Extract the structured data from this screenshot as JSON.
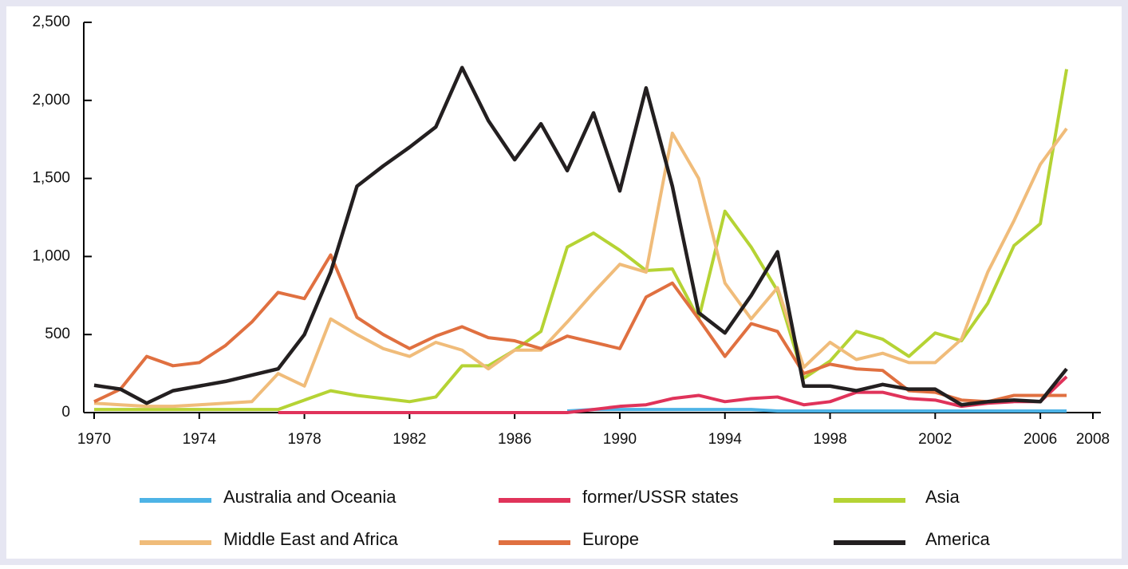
{
  "chart_data": {
    "type": "line",
    "x": [
      1970,
      1971,
      1972,
      1973,
      1974,
      1975,
      1976,
      1977,
      1978,
      1979,
      1980,
      1981,
      1982,
      1983,
      1984,
      1985,
      1986,
      1987,
      1988,
      1989,
      1990,
      1991,
      1992,
      1993,
      1994,
      1995,
      1996,
      1997,
      1998,
      1999,
      2000,
      2001,
      2002,
      2003,
      2004,
      2005,
      2006,
      2007
    ],
    "xlim": [
      1970,
      2008
    ],
    "xticks": [
      1970,
      1974,
      1978,
      1982,
      1986,
      1990,
      1994,
      1998,
      2002,
      2006,
      2008
    ],
    "ylim": [
      0,
      2500
    ],
    "yticks": [
      0,
      500,
      {
        "value": 1000,
        "label": "1,000"
      },
      {
        "value": 1500,
        "label": "1,500"
      },
      {
        "value": 2000,
        "label": "2,000"
      },
      {
        "value": 2500,
        "label": "2,500"
      }
    ],
    "series": [
      {
        "name": "Australia and Oceania",
        "color": "#4db3e6",
        "values": [
          null,
          null,
          null,
          null,
          null,
          null,
          null,
          null,
          null,
          null,
          null,
          null,
          null,
          null,
          null,
          null,
          null,
          null,
          10,
          20,
          20,
          20,
          20,
          20,
          20,
          20,
          10,
          10,
          10,
          10,
          10,
          10,
          10,
          10,
          10,
          10,
          10,
          10
        ]
      },
      {
        "name": "former/USSR states",
        "color": "#e0335a",
        "values": [
          null,
          null,
          null,
          null,
          null,
          null,
          null,
          0,
          0,
          0,
          0,
          0,
          0,
          0,
          0,
          0,
          0,
          0,
          0,
          20,
          40,
          50,
          90,
          110,
          70,
          90,
          100,
          50,
          70,
          130,
          130,
          90,
          80,
          40,
          60,
          70,
          70,
          230
        ]
      },
      {
        "name": "Asia",
        "color": "#b5d334",
        "values": [
          20,
          20,
          20,
          20,
          20,
          20,
          20,
          20,
          80,
          140,
          110,
          90,
          70,
          100,
          300,
          300,
          400,
          520,
          1060,
          1150,
          1040,
          910,
          920,
          600,
          1290,
          1060,
          780,
          220,
          330,
          520,
          470,
          360,
          510,
          460,
          700,
          1070,
          1210,
          2200
        ]
      },
      {
        "name": "Middle East and Africa",
        "color": "#f0bc7a",
        "values": [
          60,
          50,
          40,
          40,
          50,
          60,
          70,
          250,
          170,
          600,
          500,
          410,
          360,
          450,
          400,
          280,
          400,
          400,
          580,
          770,
          950,
          900,
          1790,
          1500,
          830,
          600,
          800,
          290,
          450,
          340,
          380,
          320,
          320,
          470,
          900,
          1230,
          1590,
          1820
        ]
      },
      {
        "name": "Europe",
        "color": "#e07040",
        "values": [
          70,
          150,
          360,
          300,
          320,
          430,
          580,
          770,
          730,
          1010,
          610,
          500,
          410,
          490,
          550,
          480,
          460,
          410,
          490,
          450,
          410,
          740,
          830,
          600,
          360,
          570,
          520,
          250,
          310,
          280,
          270,
          140,
          130,
          80,
          70,
          110,
          110,
          110
        ]
      },
      {
        "name": "America",
        "color": "#231f20",
        "values": [
          175,
          150,
          60,
          140,
          170,
          200,
          240,
          280,
          500,
          900,
          1450,
          1580,
          1700,
          1830,
          2210,
          1870,
          1620,
          1850,
          1550,
          1920,
          1420,
          2080,
          1450,
          640,
          510,
          750,
          1030,
          170,
          170,
          140,
          180,
          150,
          150,
          50,
          70,
          80,
          70,
          280
        ]
      }
    ]
  }
}
